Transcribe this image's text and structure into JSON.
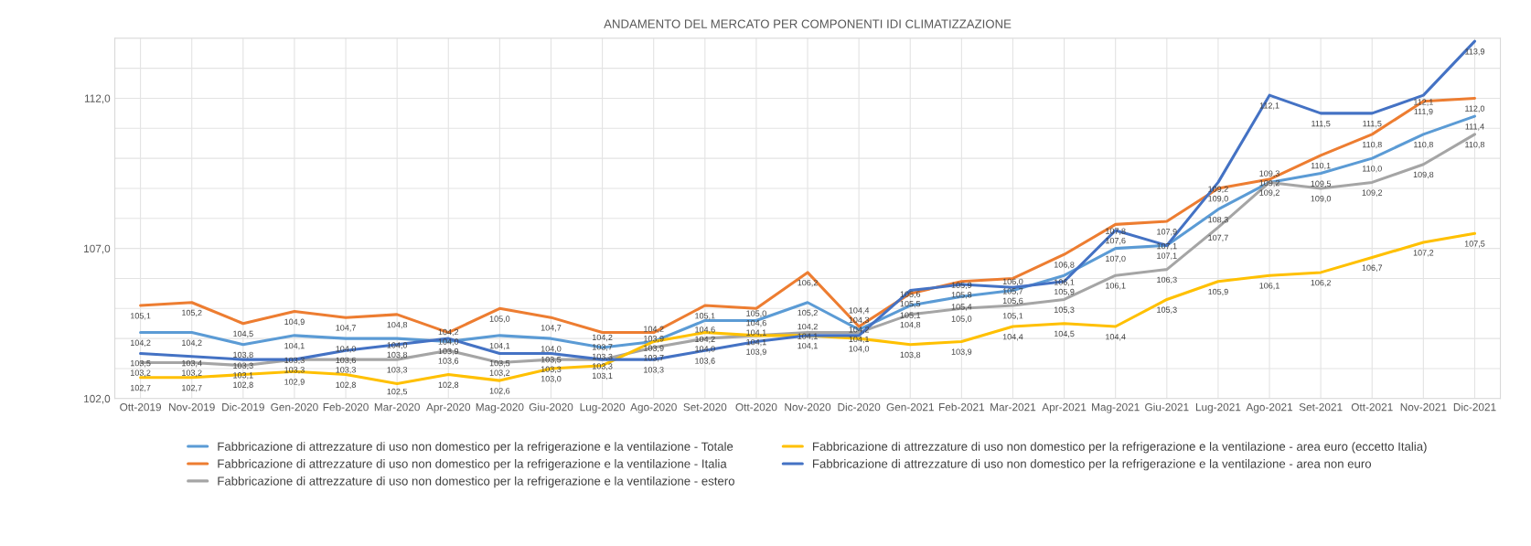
{
  "chart_data": {
    "type": "line",
    "title": "ANDAMENTO DEL MERCATO PER COMPONENTI IDI CLIMATIZZAZIONE",
    "categories": [
      "Ott-2019",
      "Nov-2019",
      "Dic-2019",
      "Gen-2020",
      "Feb-2020",
      "Mar-2020",
      "Apr-2020",
      "Mag-2020",
      "Giu-2020",
      "Lug-2020",
      "Ago-2020",
      "Set-2020",
      "Ott-2020",
      "Nov-2020",
      "Dic-2020",
      "Gen-2021",
      "Feb-2021",
      "Mar-2021",
      "Apr-2021",
      "Mag-2021",
      "Giu-2021",
      "Lug-2021",
      "Ago-2021",
      "Set-2021",
      "Ott-2021",
      "Nov-2021",
      "Dic-2021"
    ],
    "series": [
      {
        "name": "Fabbricazione di attrezzature di uso non domestico per la refrigerazione e la ventilazione - Totale",
        "color": "#5b9bd5",
        "values": [
          104.2,
          104.2,
          103.8,
          104.1,
          104.0,
          104.0,
          103.9,
          104.1,
          104.0,
          103.7,
          103.9,
          104.6,
          104.6,
          105.2,
          104.3,
          105.1,
          105.4,
          105.6,
          106.1,
          107.0,
          107.1,
          108.3,
          109.2,
          109.5,
          110.0,
          110.8,
          111.4
        ],
        "value_labels": [
          "104,2",
          "104,2",
          "103,8",
          "104,1",
          "104,0",
          "104,0",
          "103,9",
          "104,1",
          "104,0",
          "103,7",
          "103,9",
          "104,6",
          "104,6",
          "105,2",
          "104,3",
          "105,1",
          "105,4",
          "105,6",
          "106,1",
          "107,0",
          "107,1",
          "108,3",
          "109,2",
          "109,5",
          "110,0",
          "110,8",
          "111,4"
        ]
      },
      {
        "name": "Fabbricazione di attrezzature di uso non domestico per la refrigerazione e la ventilazione - Italia",
        "color": "#ed7d31",
        "values": [
          105.1,
          105.2,
          104.5,
          104.9,
          104.7,
          104.8,
          104.2,
          105.0,
          104.7,
          104.2,
          104.2,
          105.1,
          105.0,
          106.2,
          104.4,
          105.5,
          105.9,
          106.0,
          106.8,
          107.8,
          107.9,
          109.0,
          109.3,
          110.1,
          110.8,
          111.9,
          112.0
        ],
        "value_labels": [
          "105,1",
          "105,2",
          "104,5",
          "104,9",
          "104,7",
          "104,8",
          "104,2",
          "105,0",
          "104,7",
          "104,2",
          "104,2",
          "105,1",
          "105,0",
          "106,2",
          "104,4",
          "105,5",
          "105,9",
          "106,0",
          "106,8",
          "107,8",
          "107,9",
          "109,0",
          "109,3",
          "110,1",
          "110,8",
          "111,9",
          "112,0"
        ]
      },
      {
        "name": "Fabbricazione di attrezzature di uso non domestico per la refrigerazione e la ventilazione - estero",
        "color": "#a5a5a5",
        "values": [
          103.2,
          103.2,
          103.1,
          103.3,
          103.3,
          103.3,
          103.6,
          103.2,
          103.3,
          103.3,
          103.7,
          104.0,
          104.1,
          104.2,
          104.2,
          104.8,
          105.0,
          105.1,
          105.3,
          106.1,
          106.3,
          107.7,
          109.2,
          109.0,
          109.2,
          109.8,
          110.8
        ],
        "value_labels": [
          "103,2",
          "103,2",
          "103,1",
          "103,3",
          "103,3",
          "103,3",
          "103,6",
          "103,2",
          "103,3",
          "103,3",
          "103,7",
          "104,0",
          "104,1",
          "104,2",
          "104,2",
          "104,8",
          "105,0",
          "105,1",
          "105,3",
          "106,1",
          "106,3",
          "107,7",
          "109,2",
          "109,0",
          "109,2",
          "109,8",
          "110,8"
        ]
      },
      {
        "name": "Fabbricazione di attrezzature di uso non domestico per la refrigerazione e la ventilazione - area euro (eccetto Italia)",
        "color": "#ffc000",
        "values": [
          102.7,
          102.7,
          102.8,
          102.9,
          102.8,
          102.5,
          102.8,
          102.6,
          103.0,
          103.1,
          103.9,
          104.2,
          104.1,
          104.1,
          104.0,
          103.8,
          103.9,
          104.4,
          104.5,
          104.4,
          105.3,
          105.9,
          106.1,
          106.2,
          106.7,
          107.2,
          107.5
        ],
        "value_labels": [
          "102,7",
          "102,7",
          "102,8",
          "102,9",
          "102,8",
          "102,5",
          "102,8",
          "102,6",
          "103,0",
          "103,1",
          "103,9",
          "104,2",
          "104,1",
          "104,1",
          "104,0",
          "103,8",
          "103,9",
          "104,4",
          "104,5",
          "104,4",
          "105,3",
          "105,9",
          "106,1",
          "106,2",
          "106,7",
          "107,2",
          "107,5"
        ]
      },
      {
        "name": "Fabbricazione di attrezzature di uso non domestico per la refrigerazione e la ventilazione - area non euro",
        "color": "#4472c4",
        "values": [
          103.5,
          103.4,
          103.3,
          103.3,
          103.6,
          103.8,
          104.0,
          103.5,
          103.5,
          103.3,
          103.3,
          103.6,
          103.9,
          104.1,
          104.1,
          105.6,
          105.8,
          105.7,
          105.9,
          107.6,
          107.1,
          109.2,
          112.1,
          111.5,
          111.5,
          112.1,
          113.9
        ],
        "value_labels": [
          "103,5",
          "103,4",
          "103,3",
          "103,3",
          "103,6",
          "103,8",
          "104,0",
          "103,5",
          "103,5",
          "103,3",
          "103,3",
          "103,6",
          "103,9",
          "104,1",
          "104,1",
          "105,6",
          "105,8",
          "105,7",
          "105,9",
          "107,6",
          "107,1",
          "109,2",
          "112,1",
          "111,5",
          "111,5",
          "112,1",
          "113,9"
        ]
      }
    ],
    "ylim": [
      102,
      114
    ],
    "yticks": [
      {
        "value": 102,
        "label": "102,0"
      },
      {
        "value": 103,
        "label": null
      },
      {
        "value": 104,
        "label": null
      },
      {
        "value": 105,
        "label": null
      },
      {
        "value": 106,
        "label": null
      },
      {
        "value": 107,
        "label": "107,0"
      },
      {
        "value": 108,
        "label": null
      },
      {
        "value": 109,
        "label": null
      },
      {
        "value": 110,
        "label": null
      },
      {
        "value": 111,
        "label": null
      },
      {
        "value": 112,
        "label": "112,0"
      },
      {
        "value": 113,
        "label": null
      },
      {
        "value": 114,
        "label": null
      }
    ],
    "grid": true,
    "legend": "bottom",
    "marker": "none",
    "line_style": "solid"
  }
}
